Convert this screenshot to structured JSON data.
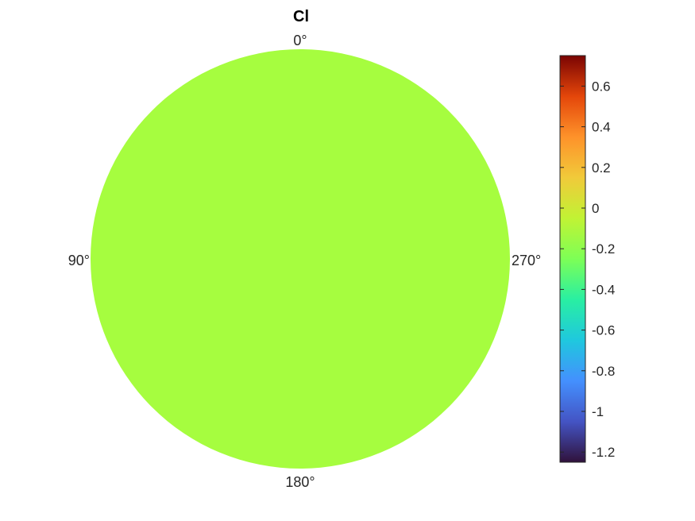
{
  "chart_data": {
    "type": "heatmap",
    "subtype": "polar-disk",
    "title": "Cl",
    "angle_labels": [
      "0°",
      "90°",
      "180°",
      "270°"
    ],
    "field_value": -0.27,
    "fill_color": "#a6fd3f",
    "colorbar": {
      "min": -1.25,
      "max": 0.75,
      "ticks": [
        0.6,
        0.4,
        0.2,
        0,
        -0.2,
        -0.4,
        -0.6,
        -0.8,
        -1,
        -1.2
      ],
      "tick_labels": [
        "0.6",
        "0.4",
        "0.2",
        "0",
        "-0.2",
        "-0.4",
        "-0.6",
        "-0.8",
        "-1",
        "-1.2"
      ],
      "colormap": "turbo"
    }
  }
}
